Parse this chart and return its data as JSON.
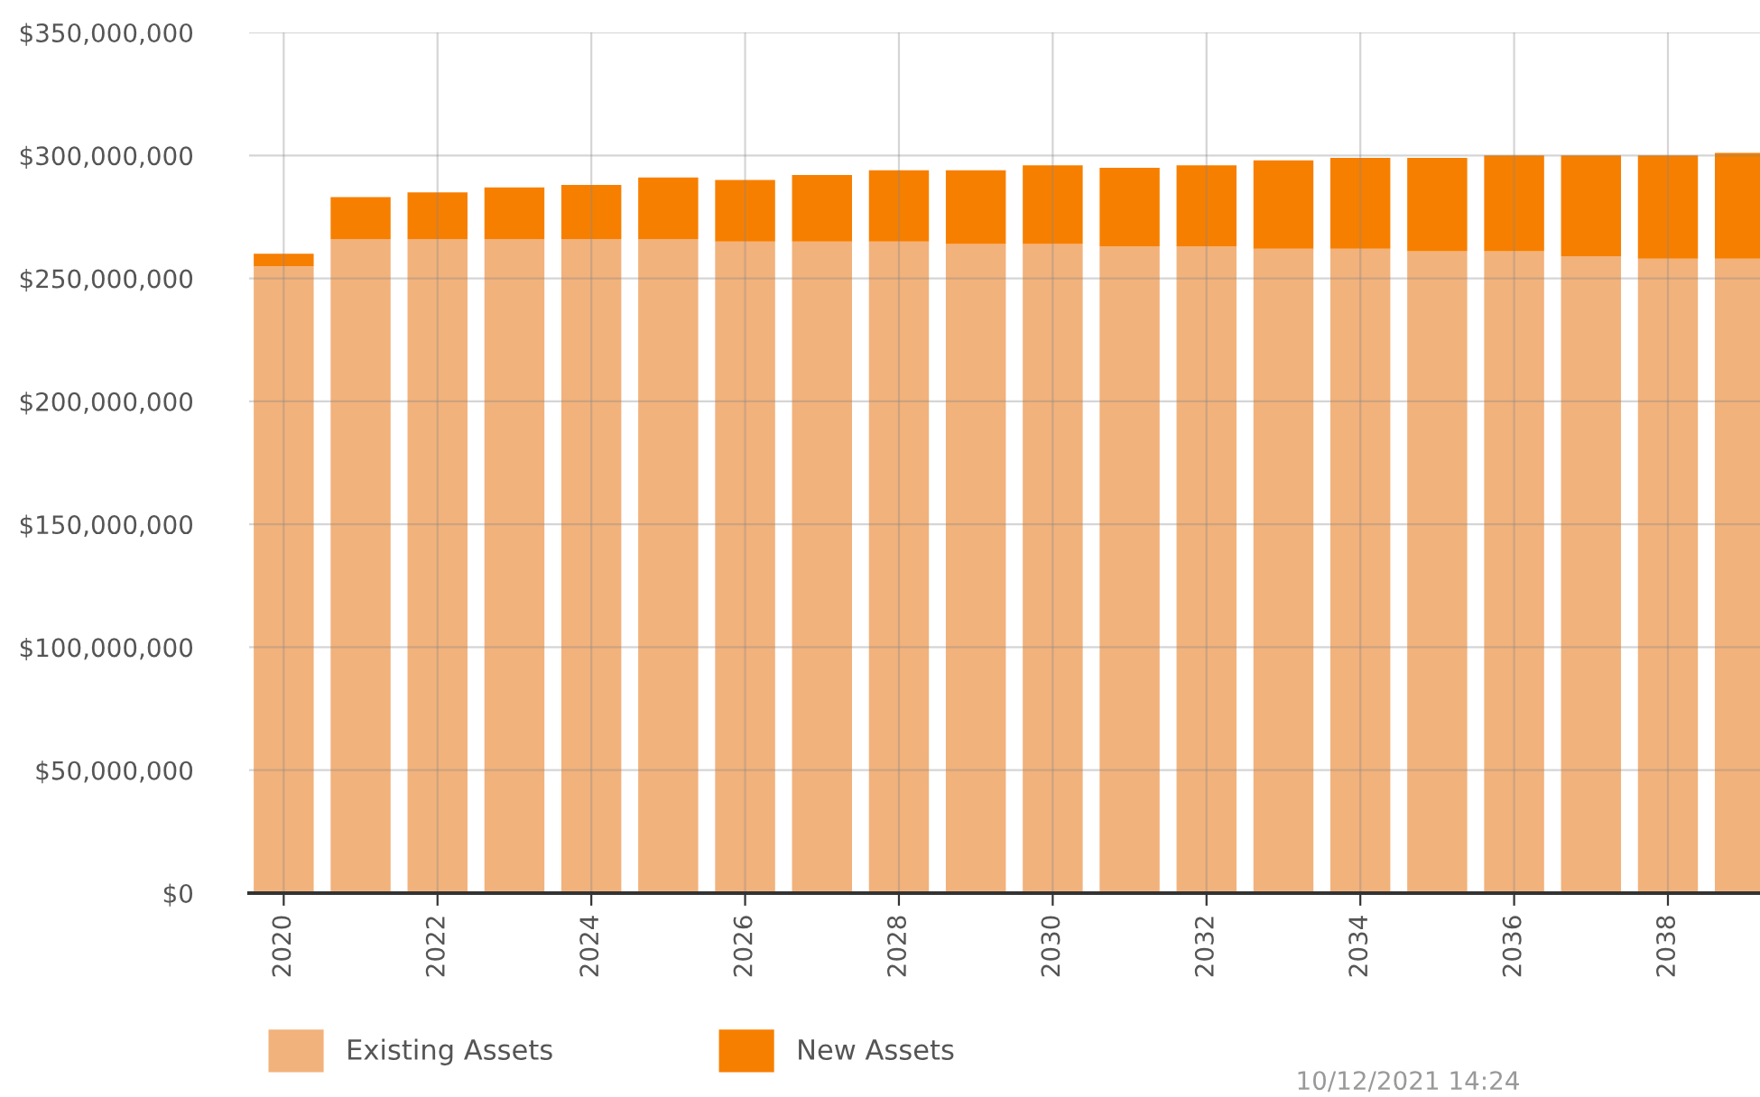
{
  "chart_data": {
    "type": "bar",
    "stacked": true,
    "categories": [
      "2020",
      null,
      "2022",
      null,
      "2024",
      null,
      "2026",
      null,
      "2028",
      null,
      "2030",
      null,
      "2032",
      null,
      "2034",
      null,
      "2036",
      null,
      "2038",
      null
    ],
    "series": [
      {
        "name": "Existing Assets",
        "color": "#f2b27c",
        "values": [
          255000000,
          266000000,
          266000000,
          266000000,
          266000000,
          266000000,
          265000000,
          265000000,
          265000000,
          264000000,
          264000000,
          263000000,
          263000000,
          262000000,
          262000000,
          261000000,
          261000000,
          259000000,
          258000000,
          258000000
        ]
      },
      {
        "name": "New Assets",
        "color": "#f77f00",
        "values": [
          5000000,
          17000000,
          19000000,
          21000000,
          22000000,
          25000000,
          25000000,
          27000000,
          29000000,
          30000000,
          32000000,
          32000000,
          33000000,
          36000000,
          37000000,
          38000000,
          39000000,
          41000000,
          42000000,
          43000000
        ]
      }
    ],
    "ylim": [
      0,
      350000000
    ],
    "yticks": [
      {
        "value": 0,
        "label": "$0"
      },
      {
        "value": 50000000,
        "label": "$50,000,000"
      },
      {
        "value": 100000000,
        "label": "$100,000,000"
      },
      {
        "value": 150000000,
        "label": "$150,000,000"
      },
      {
        "value": 200000000,
        "label": "$200,000,000"
      },
      {
        "value": 250000000,
        "label": "$250,000,000"
      },
      {
        "value": 300000000,
        "label": "$300,000,000"
      },
      {
        "value": 350000000,
        "label": "$350,000,000"
      }
    ],
    "grid": true,
    "legend": "bottom left",
    "annotations": [
      "10/12/2021 14:24"
    ]
  }
}
